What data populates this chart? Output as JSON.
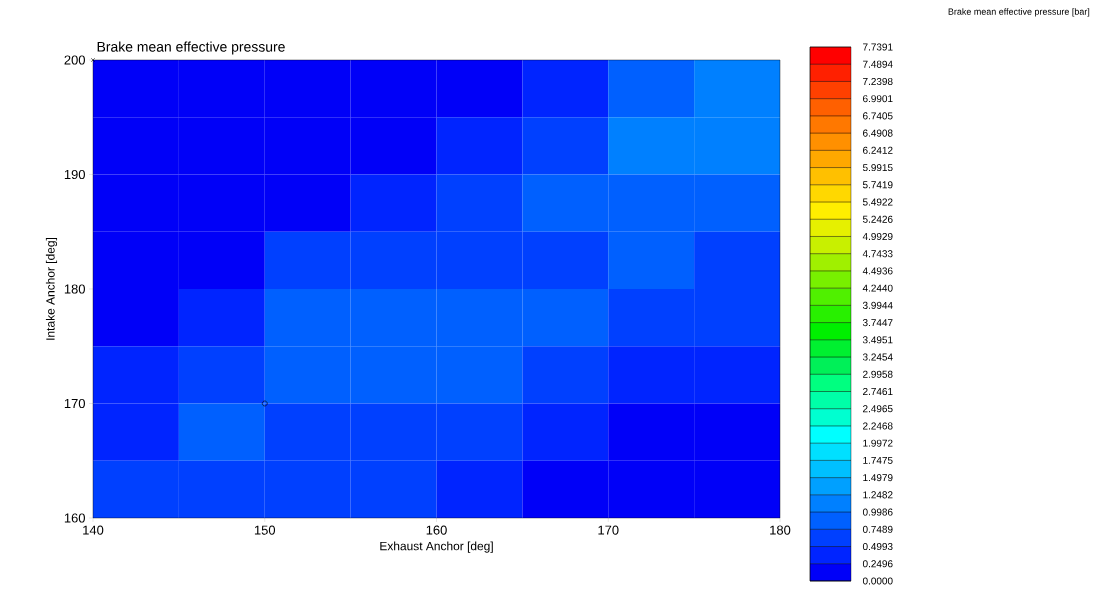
{
  "chart_data": {
    "type": "heatmap",
    "title": "Brake mean effective pressure",
    "xlabel": "Exhaust Anchor  [deg]",
    "ylabel": "Intake Anchor  [deg]",
    "clabel": "Brake mean effective pressure  [bar]",
    "xlim": [
      140,
      180
    ],
    "ylim": [
      160,
      200
    ],
    "xticks": [
      140,
      150,
      160,
      170,
      180
    ],
    "yticks": [
      160,
      170,
      180,
      190,
      200
    ],
    "cells": [
      [
        0.12,
        0.12,
        0.12,
        0.12,
        0.12,
        0.37,
        0.87,
        1.1
      ],
      [
        0.12,
        0.12,
        0.12,
        0.12,
        0.37,
        0.62,
        1.1,
        1.1
      ],
      [
        0.12,
        0.12,
        0.12,
        0.37,
        0.62,
        0.87,
        0.87,
        0.87
      ],
      [
        0.12,
        0.12,
        0.62,
        0.62,
        0.62,
        0.62,
        0.87,
        0.62
      ],
      [
        0.12,
        0.37,
        0.87,
        0.87,
        0.87,
        0.87,
        0.62,
        0.62
      ],
      [
        0.37,
        0.62,
        0.87,
        0.87,
        0.87,
        0.62,
        0.37,
        0.37
      ],
      [
        0.37,
        0.87,
        0.62,
        0.62,
        0.62,
        0.37,
        0.12,
        0.12
      ],
      [
        0.62,
        0.62,
        0.62,
        0.62,
        0.37,
        0.12,
        0.12,
        0.12
      ]
    ],
    "clim": [
      0,
      7.7391
    ],
    "cticks": [
      {
        "value": 0,
        "label": "0.0000"
      },
      {
        "value": 0.2496,
        "label": "0.2496"
      },
      {
        "value": 0.4993,
        "label": "0.4993"
      },
      {
        "value": 0.7489,
        "label": "0.7489"
      },
      {
        "value": 0.9986,
        "label": "0.9986"
      },
      {
        "value": 1.2482,
        "label": "1.2482"
      },
      {
        "value": 1.4979,
        "label": "1.4979"
      },
      {
        "value": 1.7475,
        "label": "1.7475"
      },
      {
        "value": 1.9972,
        "label": "1.9972"
      },
      {
        "value": 2.2468,
        "label": "2.2468"
      },
      {
        "value": 2.4965,
        "label": "2.4965"
      },
      {
        "value": 2.7461,
        "label": "2.7461"
      },
      {
        "value": 2.9958,
        "label": "2.9958"
      },
      {
        "value": 3.2454,
        "label": "3.2454"
      },
      {
        "value": 3.4951,
        "label": "3.4951"
      },
      {
        "value": 3.7447,
        "label": "3.7447"
      },
      {
        "value": 3.9944,
        "label": "3.9944"
      },
      {
        "value": 4.244,
        "label": "4.2440"
      },
      {
        "value": 4.4936,
        "label": "4.4936"
      },
      {
        "value": 4.7433,
        "label": "4.7433"
      },
      {
        "value": 4.9929,
        "label": "4.9929"
      },
      {
        "value": 5.2426,
        "label": "5.2426"
      },
      {
        "value": 5.4922,
        "label": "5.4922"
      },
      {
        "value": 5.7419,
        "label": "5.7419"
      },
      {
        "value": 5.9915,
        "label": "5.9915"
      },
      {
        "value": 6.2412,
        "label": "6.2412"
      },
      {
        "value": 6.4908,
        "label": "6.4908"
      },
      {
        "value": 6.7405,
        "label": "6.7405"
      },
      {
        "value": 6.9901,
        "label": "6.9901"
      },
      {
        "value": 7.2398,
        "label": "7.2398"
      },
      {
        "value": 7.4894,
        "label": "7.4894"
      },
      {
        "value": 7.7391,
        "label": "7.7391"
      }
    ],
    "colors": [
      "#0000f8",
      "#0024ff",
      "#0040ff",
      "#0060ff",
      "#0080ff",
      "#00a0ff",
      "#00c0ff",
      "#00e0ff",
      "#00ffff",
      "#00ffd0",
      "#00ffa8",
      "#00ff80",
      "#00f058",
      "#00f030",
      "#00f000",
      "#28f000",
      "#50f000",
      "#78f000",
      "#a0f000",
      "#c8f000",
      "#e6f000",
      "#ffee00",
      "#ffd800",
      "#ffc000",
      "#ffa800",
      "#ff9000",
      "#ff7800",
      "#ff6000",
      "#ff4000",
      "#ff2000",
      "#ff0000"
    ],
    "series": [
      {
        "type": "scatter",
        "marker": "circle",
        "x": [
          150
        ],
        "values": [
          170
        ],
        "color": "#000000"
      },
      {
        "type": "scatter",
        "marker": "cross",
        "x": [
          140
        ],
        "values": [
          200
        ],
        "color": "#000000"
      }
    ]
  }
}
